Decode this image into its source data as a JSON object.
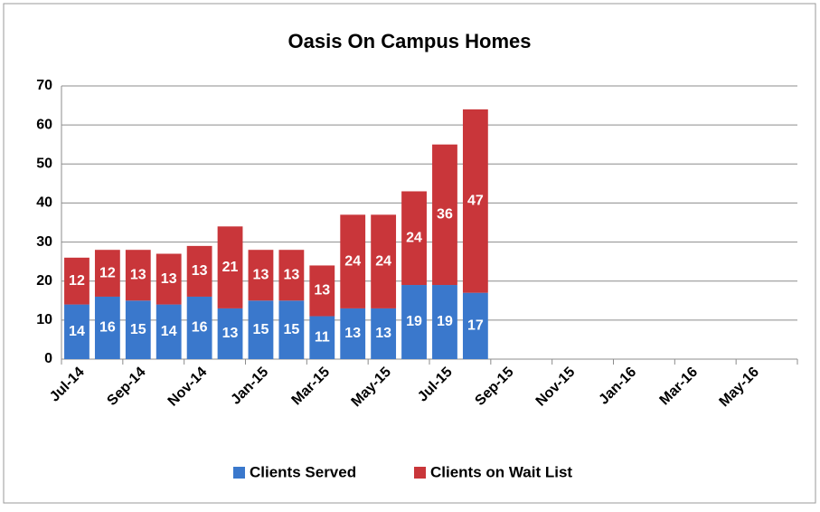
{
  "chart_data": {
    "type": "stacked_bar",
    "title": "Oasis On Campus Homes",
    "categories": [
      "Jul-14",
      null,
      "Sep-14",
      null,
      "Nov-14",
      null,
      "Jan-15",
      null,
      "Mar-15",
      null,
      "May-15",
      null,
      "Jul-15",
      null,
      "Sep-15",
      null,
      "Nov-15",
      null,
      "Jan-16",
      null,
      "Mar-16",
      null,
      "May-16",
      null
    ],
    "series": [
      {
        "name": "Clients Served",
        "color": "#3a78cc",
        "values": [
          14,
          16,
          15,
          14,
          16,
          13,
          15,
          15,
          11,
          13,
          13,
          19,
          19,
          17,
          null,
          null,
          null,
          null,
          null,
          null,
          null,
          null,
          null,
          null
        ]
      },
      {
        "name": "Clients on Wait List",
        "color": "#c9363a",
        "values": [
          12,
          12,
          13,
          13,
          13,
          21,
          13,
          13,
          13,
          24,
          24,
          24,
          36,
          47,
          null,
          null,
          null,
          null,
          null,
          null,
          null,
          null,
          null,
          null
        ]
      }
    ],
    "ylim": [
      0,
      70
    ],
    "yticks": [
      0,
      10,
      20,
      30,
      40,
      50,
      60,
      70
    ],
    "grid": true,
    "legend": "bottom"
  }
}
